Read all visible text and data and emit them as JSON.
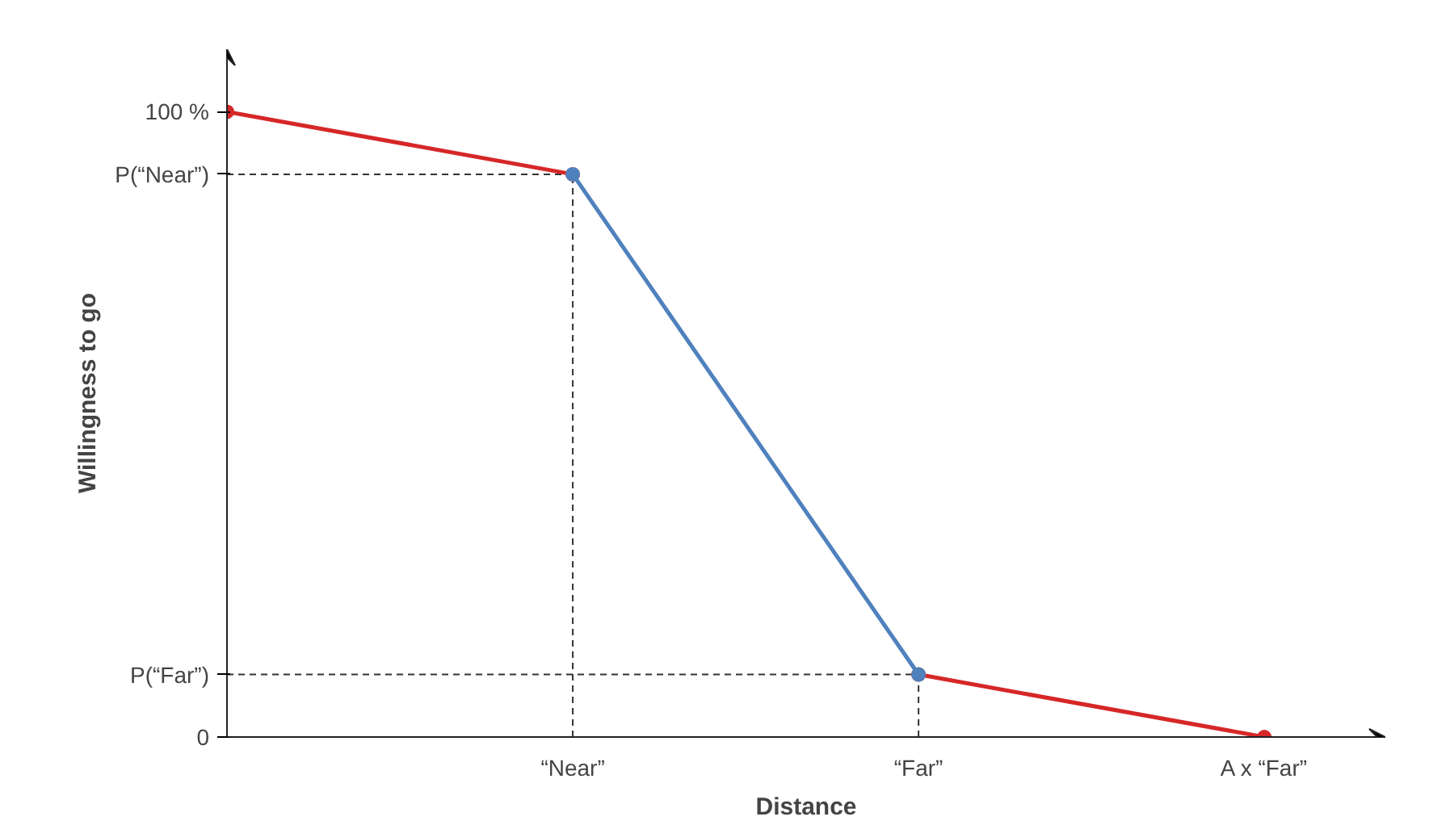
{
  "chart_data": {
    "type": "line",
    "xlabel": "Distance",
    "ylabel": "Willingness to go",
    "categories": [
      null,
      "“Near”",
      "“Far”",
      "A x “Far”"
    ],
    "series": [
      {
        "color": "#d62728",
        "values": [
          100,
          90,
          null,
          null
        ]
      },
      {
        "color": "#d62728",
        "values": [
          null,
          null,
          10,
          0
        ]
      },
      {
        "color": "#4f81bd",
        "values": [
          null,
          90,
          10,
          null
        ]
      }
    ],
    "ylim": [
      0,
      110
    ],
    "yticks": [
      0,
      {
        "value": 10,
        "label": "P(“Far”)"
      },
      {
        "value": 90,
        "label": "P(“Near”)"
      },
      {
        "value": 100,
        "label": "100 %"
      }
    ],
    "ref_lines": [
      {
        "axis": "y",
        "value": 90,
        "line_style": "dashed",
        "color": "#333333"
      },
      {
        "axis": "y",
        "value": 10,
        "line_style": "dashed",
        "color": "#333333"
      },
      {
        "axis": "x",
        "value": "“Near”",
        "line_style": "dashed",
        "color": "#333333"
      },
      {
        "axis": "x",
        "value": "“Far”",
        "line_style": "dashed",
        "color": "#333333"
      }
    ],
    "marker": "circle",
    "grid": false
  }
}
